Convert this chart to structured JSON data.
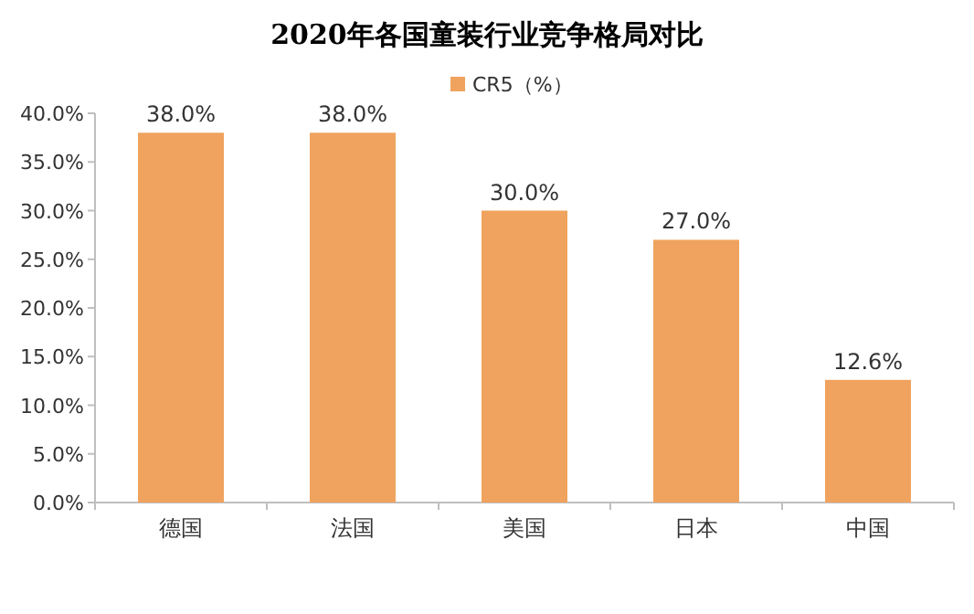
{
  "chart_data": {
    "type": "bar",
    "title": "2020年各国童装行业竞争格局对比",
    "categories": [
      "德国",
      "法国",
      "美国",
      "日本",
      "中国"
    ],
    "series": [
      {
        "name": "CR5（%）",
        "color": "#f0a35e",
        "values": [
          38.0,
          38.0,
          30.0,
          27.0,
          12.6
        ],
        "value_labels": [
          "38.0%",
          "38.0%",
          "30.0%",
          "27.0%",
          "12.6%"
        ]
      }
    ],
    "ylim": [
      0,
      40
    ],
    "yticks": [
      {
        "value": 0,
        "label": "0.0%"
      },
      {
        "value": 5,
        "label": "5.0%"
      },
      {
        "value": 10,
        "label": "10.0%"
      },
      {
        "value": 15,
        "label": "15.0%"
      },
      {
        "value": 20,
        "label": "20.0%"
      },
      {
        "value": 25,
        "label": "25.0%"
      },
      {
        "value": 30,
        "label": "30.0%"
      },
      {
        "value": 35,
        "label": "35.0%"
      },
      {
        "value": 40,
        "label": "40.0%"
      }
    ],
    "legend": "top",
    "grid": false
  }
}
